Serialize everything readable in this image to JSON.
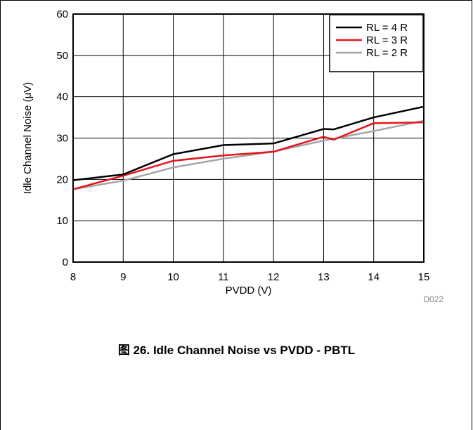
{
  "caption": "图 26. Idle Channel Noise vs PVDD - PBTL",
  "chart_data": {
    "type": "line",
    "xlabel": "PVDD (V)",
    "ylabel": "Idle Channel Noise (μV)",
    "xlim": [
      8,
      15
    ],
    "ylim": [
      0,
      60
    ],
    "xticks": [
      8,
      9,
      10,
      11,
      12,
      13,
      14,
      15
    ],
    "yticks": [
      0,
      10,
      20,
      30,
      40,
      50,
      60
    ],
    "grid": true,
    "legend_position": "top-right",
    "figure_id": "D022",
    "series": [
      {
        "name": "RL = 4 R",
        "color": "#000000",
        "x": [
          8,
          9,
          10,
          11,
          12,
          13,
          13.2,
          14,
          15
        ],
        "y": [
          19.8,
          21.2,
          26.1,
          28.3,
          28.7,
          32.2,
          32.1,
          35.0,
          37.6
        ]
      },
      {
        "name": "RL = 3 R",
        "color": "#e8141b",
        "x": [
          8,
          9,
          10,
          11,
          12,
          13,
          13.2,
          14,
          15
        ],
        "y": [
          17.6,
          20.9,
          24.5,
          25.8,
          26.7,
          30.3,
          29.6,
          33.6,
          33.8
        ]
      },
      {
        "name": "RL = 2 R",
        "color": "#a6a6a6",
        "x": [
          8,
          9,
          10,
          11,
          12,
          13,
          14,
          15
        ],
        "y": [
          17.6,
          19.7,
          22.9,
          25.0,
          26.7,
          29.4,
          31.7,
          34.2
        ]
      }
    ]
  }
}
